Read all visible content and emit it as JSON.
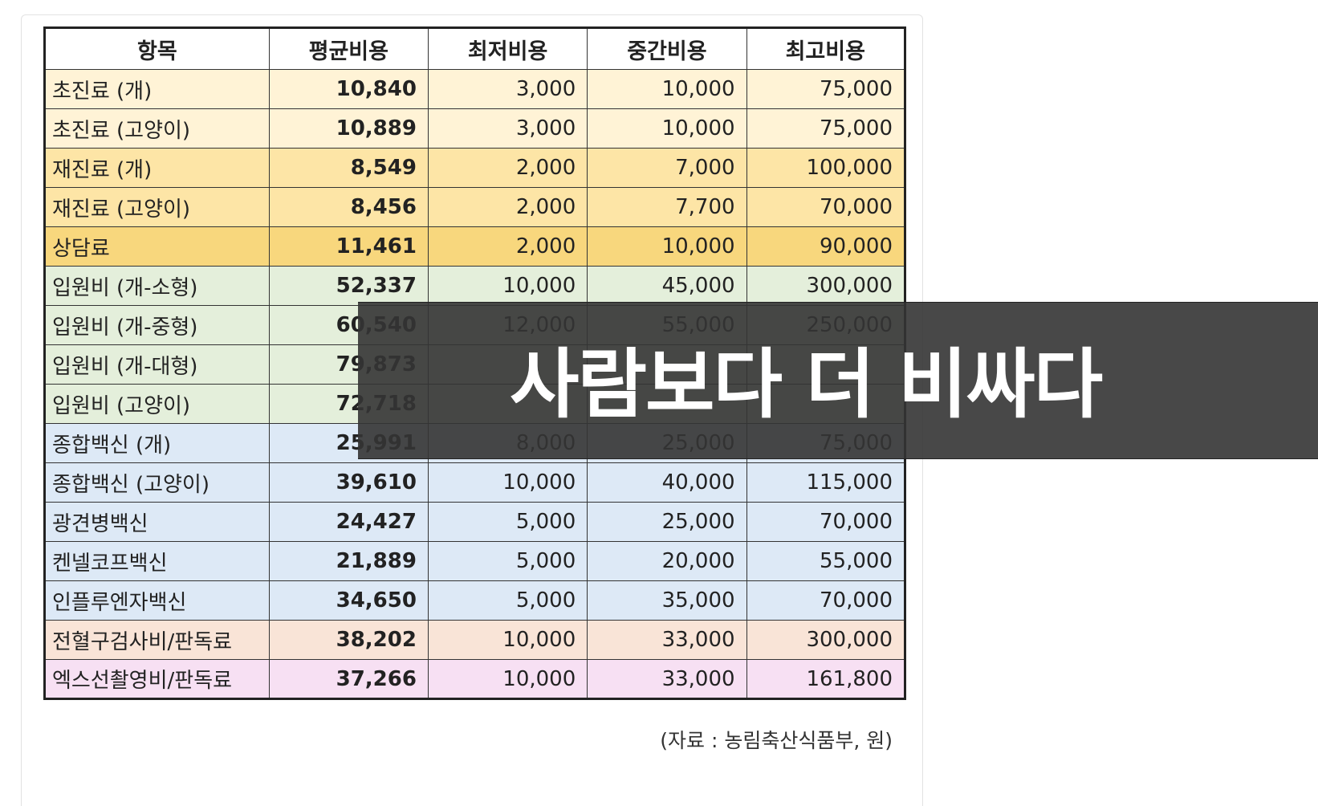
{
  "table": {
    "headers": [
      "항목",
      "평균비용",
      "최저비용",
      "중간비용",
      "최고비용"
    ],
    "rows": [
      {
        "item": "초진료 (개)",
        "avg": "10,840",
        "min": "3,000",
        "mid": "10,000",
        "max": "75,000",
        "color": "#fff3d6"
      },
      {
        "item": "초진료 (고양이)",
        "avg": "10,889",
        "min": "3,000",
        "mid": "10,000",
        "max": "75,000",
        "color": "#fff3d6"
      },
      {
        "item": "재진료 (개)",
        "avg": "8,549",
        "min": "2,000",
        "mid": "7,000",
        "max": "100,000",
        "color": "#fde5a6"
      },
      {
        "item": "재진료 (고양이)",
        "avg": "8,456",
        "min": "2,000",
        "mid": "7,700",
        "max": "70,000",
        "color": "#fde5a6"
      },
      {
        "item": "상담료",
        "avg": "11,461",
        "min": "2,000",
        "mid": "10,000",
        "max": "90,000",
        "color": "#f8d77d"
      },
      {
        "item": "입원비 (개-소형)",
        "avg": "52,337",
        "min": "10,000",
        "mid": "45,000",
        "max": "300,000",
        "color": "#e4efdb"
      },
      {
        "item": "입원비 (개-중형)",
        "avg": "60,540",
        "min": "12,000",
        "mid": "55,000",
        "max": "250,000",
        "color": "#e4efdb"
      },
      {
        "item": "입원비 (개-대형)",
        "avg": "79,873",
        "min": "",
        "mid": "",
        "max": "",
        "color": "#e4efdb"
      },
      {
        "item": "입원비 (고양이)",
        "avg": "72,718",
        "min": "",
        "mid": "",
        "max": "",
        "color": "#e4efdb"
      },
      {
        "item": "종합백신 (개)",
        "avg": "25,991",
        "min": "8,000",
        "mid": "25,000",
        "max": "75,000",
        "color": "#dde9f6"
      },
      {
        "item": "종합백신 (고양이)",
        "avg": "39,610",
        "min": "10,000",
        "mid": "40,000",
        "max": "115,000",
        "color": "#dde9f6"
      },
      {
        "item": "광견병백신",
        "avg": "24,427",
        "min": "5,000",
        "mid": "25,000",
        "max": "70,000",
        "color": "#dde9f6"
      },
      {
        "item": "켄넬코프백신",
        "avg": "21,889",
        "min": "5,000",
        "mid": "20,000",
        "max": "55,000",
        "color": "#dde9f6"
      },
      {
        "item": "인플루엔자백신",
        "avg": "34,650",
        "min": "5,000",
        "mid": "35,000",
        "max": "70,000",
        "color": "#dde9f6"
      },
      {
        "item": "전혈구검사비/판독료",
        "avg": "38,202",
        "min": "10,000",
        "mid": "33,000",
        "max": "300,000",
        "color": "#f9e4d7"
      },
      {
        "item": "엑스선촬영비/판독료",
        "avg": "37,266",
        "min": "10,000",
        "mid": "33,000",
        "max": "161,800",
        "color": "#f7e0f3"
      }
    ]
  },
  "source": "(자료 : 농림축산식품부, 원)",
  "overlay": {
    "caption": "사람보다 더 비싸다"
  }
}
